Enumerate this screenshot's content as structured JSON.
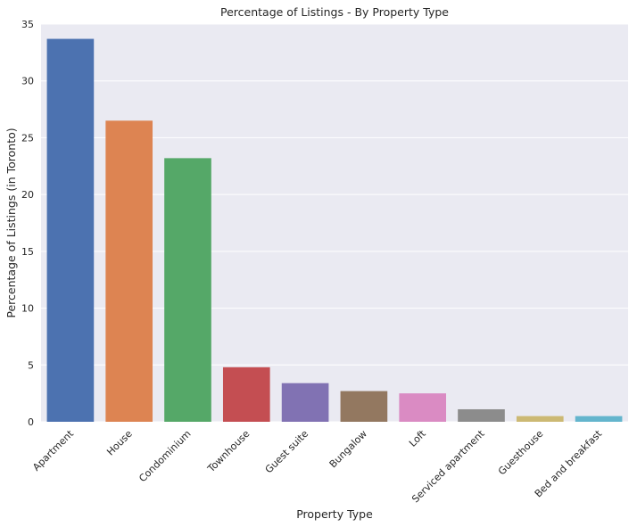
{
  "chart_data": {
    "type": "bar",
    "title": "Percentage of Listings - By Property Type",
    "xlabel": "Property Type",
    "ylabel": "Percentage of Listings (in Toronto)",
    "categories": [
      "Apartment",
      "House",
      "Condominium",
      "Townhouse",
      "Guest suite",
      "Bungalow",
      "Loft",
      "Serviced apartment",
      "Guesthouse",
      "Bed and breakfast"
    ],
    "values": [
      33.7,
      26.5,
      23.2,
      4.8,
      3.4,
      2.7,
      2.5,
      1.1,
      0.5,
      0.5
    ],
    "colors": [
      "#4c72b0",
      "#dd8452",
      "#55a868",
      "#c44e52",
      "#8172b3",
      "#937860",
      "#da8bc3",
      "#8c8c8c",
      "#ccb974",
      "#64b5cd"
    ],
    "ylim": [
      0,
      35
    ],
    "yticks": [
      0,
      5,
      10,
      15,
      20,
      25,
      30,
      35
    ],
    "grid": "horizontal",
    "background": "#eaeaf2"
  }
}
